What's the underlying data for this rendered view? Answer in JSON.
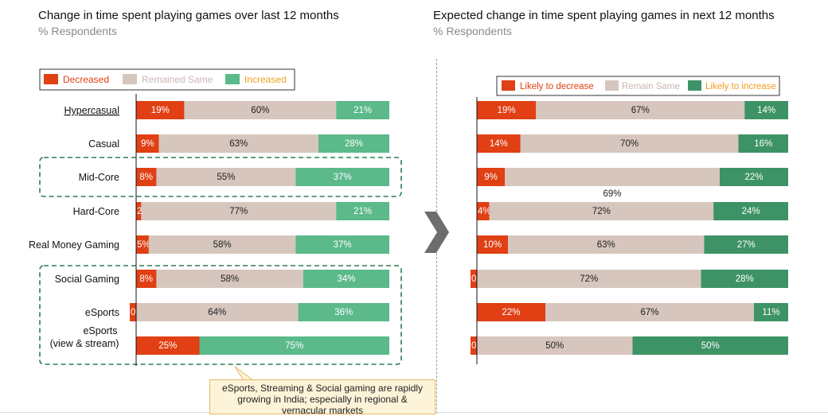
{
  "colors": {
    "decreased": "#e04014",
    "same": "#d6c6be",
    "increased_left": "#5bb98a",
    "increased_right": "#3d9365",
    "increase_legend_text": "#f0a020",
    "dashed_box": "#2e7b54"
  },
  "arrow_icon": "chevron-right-icon",
  "callout": {
    "line1": "eSports, Streaming & Social gaming are rapidly",
    "line2": "growing in India; especially in regional &",
    "line3": "vernacular markets"
  },
  "chart_data": [
    {
      "type": "bar",
      "stacked": "horizontal-100%",
      "title": "Change in time spent playing games over last 12 months",
      "subtitle": "% Respondents",
      "legend": [
        "Decreased",
        "Remained Same",
        "Increased"
      ],
      "legend_position": "top",
      "categories": [
        "Hypercasual",
        "Casual",
        "Mid-Core",
        "Hard-Core",
        "Real Money Gaming",
        "Social Gaming",
        "eSports",
        "eSports (view & stream)"
      ],
      "series": [
        {
          "name": "Decreased",
          "values": [
            19,
            9,
            8,
            2,
            5,
            8,
            0,
            25
          ],
          "labels": [
            "19%",
            "9%",
            "8%",
            "2%",
            "5%",
            "8%",
            "0%",
            "25%"
          ]
        },
        {
          "name": "Remained Same",
          "values": [
            60,
            63,
            55,
            77,
            58,
            58,
            64,
            0
          ],
          "labels": [
            "60%",
            "63%",
            "55%",
            "77%",
            "58%",
            "58%",
            "64%",
            "0%"
          ]
        },
        {
          "name": "Increased",
          "values": [
            21,
            28,
            37,
            21,
            37,
            34,
            36,
            75
          ],
          "labels": [
            "21%",
            "28%",
            "37%",
            "21%",
            "37%",
            "34%",
            "36%",
            "75%"
          ]
        }
      ]
    },
    {
      "type": "bar",
      "stacked": "horizontal-100%",
      "title": "Expected change in time spent playing games in next 12 months",
      "subtitle": "% Respondents",
      "legend": [
        "Likely to decrease",
        "Remain Same",
        "Likely to increase"
      ],
      "legend_position": "top",
      "categories": [
        "Hypercasual",
        "Casual",
        "Mid-Core",
        "Hard-Core",
        "Real Money Gaming",
        "Social Gaming",
        "eSports",
        "eSports (view & stream)"
      ],
      "series": [
        {
          "name": "Likely to decrease",
          "values": [
            19,
            14,
            9,
            4,
            10,
            0,
            22,
            0
          ],
          "labels": [
            "19%",
            "14%",
            "9%",
            "4%",
            "10%",
            "0%",
            "22%",
            "0%"
          ]
        },
        {
          "name": "Remain Same",
          "values": [
            67,
            70,
            69,
            72,
            63,
            72,
            67,
            50
          ],
          "labels": [
            "67%",
            "70%",
            "69%",
            "72%",
            "63%",
            "72%",
            "67%",
            "50%"
          ]
        },
        {
          "name": "Likely to increase",
          "values": [
            14,
            16,
            22,
            24,
            27,
            28,
            11,
            50
          ],
          "labels": [
            "14%",
            "16%",
            "22%",
            "24%",
            "27%",
            "28%",
            "11%",
            "50%"
          ]
        }
      ]
    }
  ]
}
